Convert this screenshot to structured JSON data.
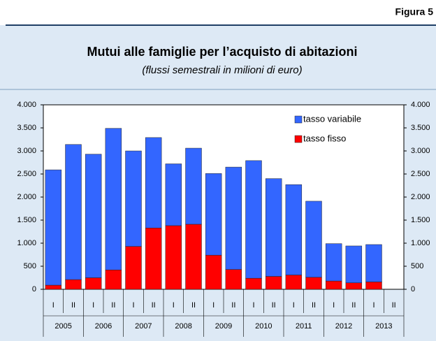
{
  "figure_label": "Figura 5",
  "chart_data": {
    "type": "stacked-bar",
    "title": "Mutui alle famiglie per l’acquisto di abitazioni",
    "subtitle": "(flussi semestrali in milioni di euro)",
    "categories": [
      "I",
      "II",
      "I",
      "II",
      "I",
      "II",
      "I",
      "II",
      "I",
      "II",
      "I",
      "II",
      "I",
      "II",
      "I",
      "II",
      "I",
      "II"
    ],
    "years": [
      "2005",
      "2006",
      "2007",
      "2008",
      "2009",
      "2010",
      "2011",
      "2012",
      "2013"
    ],
    "series": [
      {
        "name": "tasso fisso",
        "color": "#ff0000",
        "values": [
          90,
          210,
          250,
          420,
          930,
          1330,
          1380,
          1410,
          740,
          430,
          240,
          280,
          310,
          260,
          180,
          140,
          160,
          null
        ]
      },
      {
        "name": "tasso variabile",
        "color": "#3366ff",
        "values": [
          2500,
          2930,
          2680,
          3070,
          2070,
          1960,
          1340,
          1650,
          1770,
          2220,
          2550,
          2120,
          1960,
          1650,
          810,
          800,
          810,
          null
        ]
      }
    ],
    "ylim": [
      0,
      4000
    ],
    "yticks": [
      0,
      500,
      {
        "value": 1000,
        "label": "1.000"
      },
      {
        "value": 1500,
        "label": "1.500"
      },
      {
        "value": 2000,
        "label": "2.000"
      },
      {
        "value": 2500,
        "label": "2.500"
      },
      {
        "value": 3000,
        "label": "3.000"
      },
      {
        "value": 3500,
        "label": "3.500"
      },
      {
        "value": 4000,
        "label": "4.000"
      }
    ],
    "legend": "upper right"
  }
}
